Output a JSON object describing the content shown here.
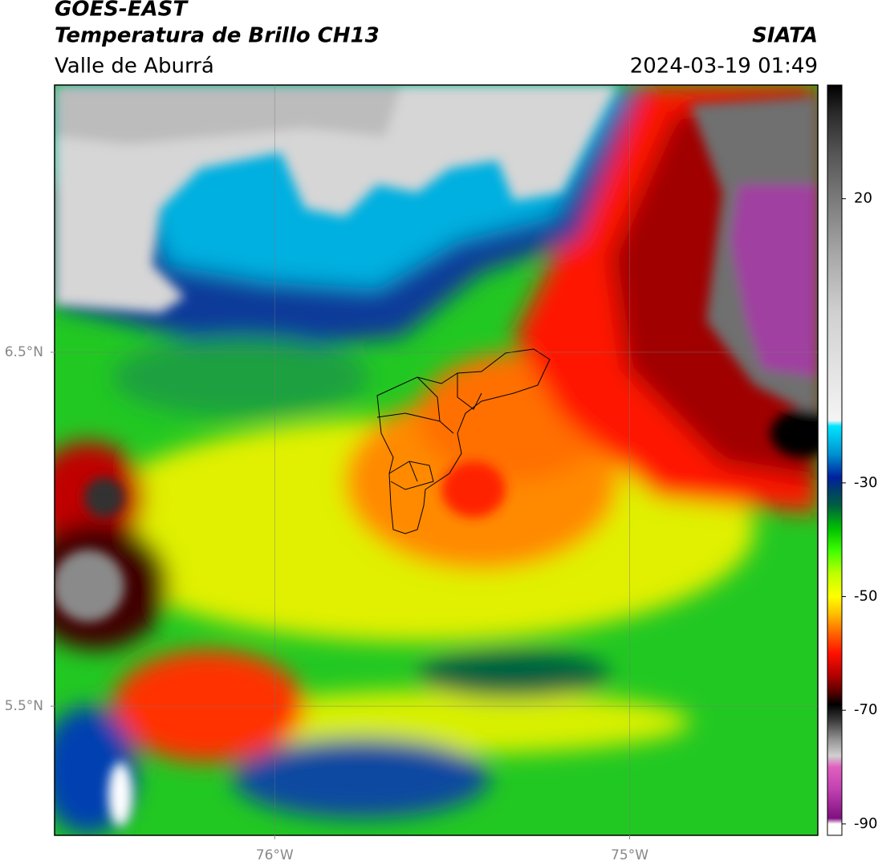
{
  "title": "GOES-EAST",
  "subtitle": "Temperatura de Brillo CH13",
  "region": "Valle de Aburrá",
  "source": "SIATA",
  "timestamp": "2024-03-19 01:49",
  "map": {
    "xlim": [
      -76.62,
      -74.47
    ],
    "ylim": [
      5.135,
      7.255
    ],
    "xticks": [
      {
        "value": -76,
        "label": "76°W"
      },
      {
        "value": -75,
        "label": "75°W"
      }
    ],
    "yticks": [
      {
        "value": 6.5,
        "label": "6.5°N"
      },
      {
        "value": 5.5,
        "label": "5.5°N"
      }
    ],
    "grid": true
  },
  "colorbar": {
    "lim": [
      -92,
      40
    ],
    "ticks": [
      20,
      -30,
      -50,
      -70,
      -90
    ],
    "stops": [
      {
        "value": 40,
        "color": "#000000"
      },
      {
        "value": 35,
        "color": "#2a2a2a"
      },
      {
        "value": 28,
        "color": "#555555"
      },
      {
        "value": 20,
        "color": "#7a7a7a"
      },
      {
        "value": 10,
        "color": "#a8a8a8"
      },
      {
        "value": 0,
        "color": "#d0d0d0"
      },
      {
        "value": -19,
        "color": "#f4f4f4"
      },
      {
        "value": -20,
        "color": "#00e5ff"
      },
      {
        "value": -25,
        "color": "#0090d0"
      },
      {
        "value": -29,
        "color": "#0020a0"
      },
      {
        "value": -31,
        "color": "#003a70"
      },
      {
        "value": -34,
        "color": "#006040"
      },
      {
        "value": -38,
        "color": "#00c000"
      },
      {
        "value": -42,
        "color": "#40ff00"
      },
      {
        "value": -46,
        "color": "#c0ff00"
      },
      {
        "value": -50,
        "color": "#ffff00"
      },
      {
        "value": -53,
        "color": "#ffc000"
      },
      {
        "value": -56,
        "color": "#ff7000"
      },
      {
        "value": -60,
        "color": "#ff1000"
      },
      {
        "value": -64,
        "color": "#b00000"
      },
      {
        "value": -67,
        "color": "#500000"
      },
      {
        "value": -69,
        "color": "#000000"
      },
      {
        "value": -72,
        "color": "#404040"
      },
      {
        "value": -75,
        "color": "#909090"
      },
      {
        "value": -78,
        "color": "#d0d0d0"
      },
      {
        "value": -80,
        "color": "#e060c0"
      },
      {
        "value": -84,
        "color": "#c040b0"
      },
      {
        "value": -89,
        "color": "#801080"
      },
      {
        "value": -90,
        "color": "#ffffff"
      }
    ]
  }
}
